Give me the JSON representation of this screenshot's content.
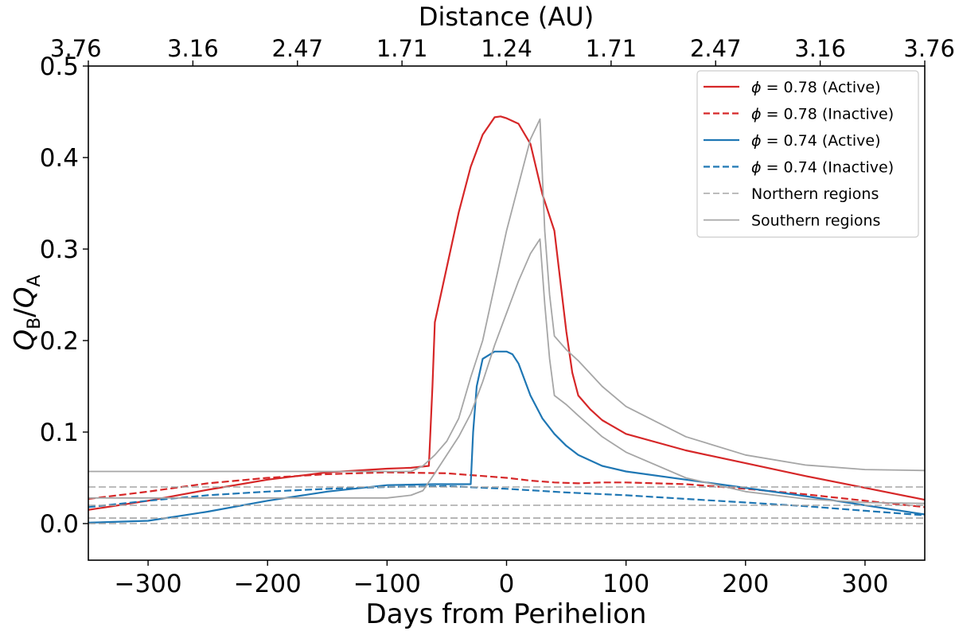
{
  "chart_data": {
    "type": "line",
    "xlabel": "Days from Perihelion",
    "ylabel_main": "Q",
    "ylabel_sub_b": "B",
    "ylabel_sub_a": "A",
    "ylabel_sep": "/",
    "top_axis_label": "Distance (AU)",
    "xlim": [
      -350,
      350
    ],
    "ylim": [
      -0.04,
      0.5
    ],
    "x_ticks": [
      -300,
      -200,
      -100,
      0,
      100,
      200,
      300
    ],
    "x_tick_labels": [
      "−300",
      "−200",
      "−100",
      "0",
      "100",
      "200",
      "300"
    ],
    "y_ticks": [
      0.0,
      0.1,
      0.2,
      0.3,
      0.4,
      0.5
    ],
    "y_tick_labels": [
      "0.0",
      "0.1",
      "0.2",
      "0.3",
      "0.4",
      "0.5"
    ],
    "top_ticks": [
      -350,
      -262.5,
      -175,
      -87.5,
      0,
      87.5,
      175,
      262.5,
      350
    ],
    "top_tick_labels": [
      "3.76",
      "3.16",
      "2.47",
      "1.71",
      "1.24",
      "1.71",
      "2.47",
      "3.16",
      "3.76"
    ],
    "legend_position": "top-right",
    "colors": {
      "red": "#d62728",
      "blue": "#1f77b4",
      "gray": "#a6a6a6",
      "axis": "#000000"
    },
    "series": [
      {
        "name": "ϕ = 0.78 (Active)",
        "legend_symbol": "ϕ",
        "legend_rest": " = 0.78 (Active)",
        "color": "#d62728",
        "dash": "solid",
        "width": 2.2,
        "points": [
          [
            -350,
            0.015
          ],
          [
            -300,
            0.025
          ],
          [
            -250,
            0.037
          ],
          [
            -200,
            0.048
          ],
          [
            -150,
            0.056
          ],
          [
            -100,
            0.06
          ],
          [
            -80,
            0.061
          ],
          [
            -65,
            0.063
          ],
          [
            -62,
            0.15
          ],
          [
            -60,
            0.22
          ],
          [
            -50,
            0.28
          ],
          [
            -40,
            0.34
          ],
          [
            -30,
            0.39
          ],
          [
            -20,
            0.425
          ],
          [
            -10,
            0.444
          ],
          [
            -5,
            0.445
          ],
          [
            0,
            0.443
          ],
          [
            10,
            0.437
          ],
          [
            20,
            0.415
          ],
          [
            30,
            0.36
          ],
          [
            40,
            0.32
          ],
          [
            45,
            0.265
          ],
          [
            50,
            0.21
          ],
          [
            55,
            0.165
          ],
          [
            60,
            0.14
          ],
          [
            70,
            0.125
          ],
          [
            80,
            0.113
          ],
          [
            100,
            0.098
          ],
          [
            150,
            0.08
          ],
          [
            200,
            0.066
          ],
          [
            250,
            0.052
          ],
          [
            300,
            0.039
          ],
          [
            350,
            0.026
          ]
        ]
      },
      {
        "name": "ϕ = 0.78 (Inactive)",
        "legend_symbol": "ϕ",
        "legend_rest": " = 0.78 (Inactive)",
        "color": "#d62728",
        "dash": "dashed",
        "width": 2.2,
        "points": [
          [
            -350,
            0.027
          ],
          [
            -300,
            0.035
          ],
          [
            -250,
            0.044
          ],
          [
            -200,
            0.05
          ],
          [
            -150,
            0.054
          ],
          [
            -100,
            0.056
          ],
          [
            -50,
            0.055
          ],
          [
            -20,
            0.052
          ],
          [
            0,
            0.05
          ],
          [
            20,
            0.047
          ],
          [
            40,
            0.045
          ],
          [
            60,
            0.044
          ],
          [
            80,
            0.045
          ],
          [
            100,
            0.045
          ],
          [
            150,
            0.043
          ],
          [
            200,
            0.038
          ],
          [
            250,
            0.032
          ],
          [
            300,
            0.025
          ],
          [
            350,
            0.018
          ]
        ]
      },
      {
        "name": "ϕ = 0.74 (Active)",
        "legend_symbol": "ϕ",
        "legend_rest": " = 0.74 (Active)",
        "color": "#1f77b4",
        "dash": "solid",
        "width": 2.2,
        "points": [
          [
            -350,
            0.001
          ],
          [
            -300,
            0.003
          ],
          [
            -250,
            0.013
          ],
          [
            -200,
            0.025
          ],
          [
            -150,
            0.035
          ],
          [
            -100,
            0.042
          ],
          [
            -60,
            0.043
          ],
          [
            -30,
            0.043
          ],
          [
            -28,
            0.1
          ],
          [
            -25,
            0.15
          ],
          [
            -20,
            0.18
          ],
          [
            -10,
            0.188
          ],
          [
            0,
            0.188
          ],
          [
            5,
            0.185
          ],
          [
            10,
            0.175
          ],
          [
            20,
            0.14
          ],
          [
            30,
            0.115
          ],
          [
            40,
            0.098
          ],
          [
            50,
            0.085
          ],
          [
            60,
            0.075
          ],
          [
            80,
            0.063
          ],
          [
            100,
            0.057
          ],
          [
            150,
            0.048
          ],
          [
            200,
            0.039
          ],
          [
            250,
            0.03
          ],
          [
            300,
            0.02
          ],
          [
            350,
            0.01
          ]
        ]
      },
      {
        "name": "ϕ = 0.74 (Inactive)",
        "legend_symbol": "ϕ",
        "legend_rest": " = 0.74 (Inactive)",
        "color": "#1f77b4",
        "dash": "dashed",
        "width": 2.2,
        "points": [
          [
            -350,
            0.018
          ],
          [
            -300,
            0.025
          ],
          [
            -250,
            0.031
          ],
          [
            -200,
            0.035
          ],
          [
            -150,
            0.038
          ],
          [
            -100,
            0.04
          ],
          [
            -50,
            0.041
          ],
          [
            0,
            0.038
          ],
          [
            50,
            0.034
          ],
          [
            100,
            0.031
          ],
          [
            150,
            0.027
          ],
          [
            200,
            0.023
          ],
          [
            250,
            0.019
          ],
          [
            300,
            0.014
          ],
          [
            350,
            0.009
          ]
        ]
      },
      {
        "name": "Northern regions",
        "legend_symbol": "",
        "legend_rest": "Northern regions",
        "color": "#a6a6a6",
        "dash": "dashed",
        "width": 1.6,
        "hlines": [
          0.04,
          0.02,
          0.006,
          0.0
        ]
      },
      {
        "name": "Southern regions",
        "legend_symbol": "",
        "legend_rest": "Southern regions",
        "color": "#a6a6a6",
        "dash": "solid",
        "width": 1.8,
        "curves": [
          [
            [
              -350,
              0.057
            ],
            [
              -80,
              0.057
            ],
            [
              -70,
              0.063
            ],
            [
              -60,
              0.075
            ],
            [
              -50,
              0.09
            ],
            [
              -40,
              0.115
            ],
            [
              -30,
              0.16
            ],
            [
              -20,
              0.2
            ],
            [
              -10,
              0.26
            ],
            [
              0,
              0.32
            ],
            [
              10,
              0.37
            ],
            [
              20,
              0.42
            ],
            [
              28,
              0.442
            ],
            [
              32,
              0.32
            ],
            [
              36,
              0.25
            ],
            [
              40,
              0.205
            ],
            [
              50,
              0.19
            ],
            [
              60,
              0.178
            ],
            [
              80,
              0.15
            ],
            [
              100,
              0.128
            ],
            [
              150,
              0.095
            ],
            [
              200,
              0.075
            ],
            [
              250,
              0.064
            ],
            [
              300,
              0.059
            ],
            [
              350,
              0.058
            ]
          ],
          [
            [
              -350,
              0.028
            ],
            [
              -100,
              0.028
            ],
            [
              -80,
              0.031
            ],
            [
              -70,
              0.036
            ],
            [
              -60,
              0.055
            ],
            [
              -50,
              0.075
            ],
            [
              -40,
              0.095
            ],
            [
              -30,
              0.12
            ],
            [
              -20,
              0.155
            ],
            [
              -10,
              0.195
            ],
            [
              0,
              0.23
            ],
            [
              10,
              0.265
            ],
            [
              20,
              0.295
            ],
            [
              28,
              0.311
            ],
            [
              32,
              0.24
            ],
            [
              36,
              0.18
            ],
            [
              40,
              0.14
            ],
            [
              50,
              0.13
            ],
            [
              60,
              0.118
            ],
            [
              80,
              0.095
            ],
            [
              100,
              0.078
            ],
            [
              150,
              0.05
            ],
            [
              200,
              0.035
            ],
            [
              250,
              0.027
            ],
            [
              300,
              0.023
            ],
            [
              350,
              0.022
            ]
          ]
        ]
      }
    ]
  }
}
